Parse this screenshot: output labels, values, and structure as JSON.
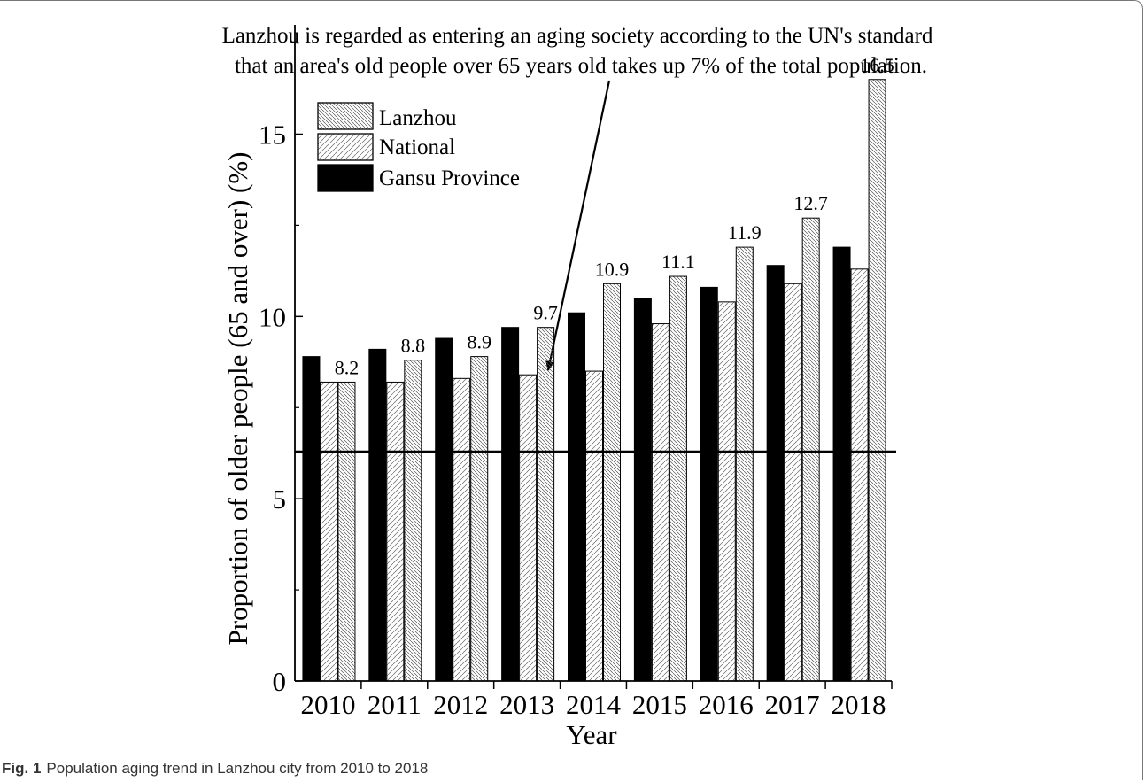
{
  "figure": {
    "caption_label": "Fig. 1",
    "caption_text": "Population aging trend in Lanzhou city from 2010 to 2018"
  },
  "chart_data": {
    "type": "bar",
    "annotation": [
      "Lanzhou is regarded as entering an aging society according to the UN's standard",
      "that an area's old people over 65 years old takes up 7% of the total population."
    ],
    "xlabel": "Year",
    "ylabel": "Proportion of older people (65 and over) (%)",
    "ylim": [
      0,
      18
    ],
    "yticks": [
      0,
      5,
      10,
      15
    ],
    "categories": [
      "2010",
      "2011",
      "2012",
      "2013",
      "2014",
      "2015",
      "2016",
      "2017",
      "2018"
    ],
    "series": [
      {
        "name": "Gansu Province",
        "values": [
          8.9,
          9.1,
          9.4,
          9.7,
          10.1,
          10.5,
          10.8,
          11.4,
          11.9
        ]
      },
      {
        "name": "National",
        "values": [
          8.2,
          8.2,
          8.3,
          8.4,
          8.5,
          9.8,
          10.4,
          10.9,
          11.3
        ]
      },
      {
        "name": "Lanzhou",
        "values": [
          8.2,
          8.8,
          8.9,
          9.7,
          10.9,
          11.1,
          11.9,
          12.7,
          16.5
        ]
      }
    ],
    "data_labels": [
      "8.2",
      "8.8",
      "8.9",
      "9.7",
      "10.9",
      "11.1",
      "11.9",
      "12.7",
      "16.5"
    ],
    "legend": [
      "Lanzhou",
      "National",
      "Gansu Province"
    ],
    "legend_position": "top-left",
    "threshold": 7,
    "arrow_points_to": "2013",
    "colors": {
      "gansu": "#000000",
      "hatch": "#555555",
      "axis": "#000000"
    }
  }
}
